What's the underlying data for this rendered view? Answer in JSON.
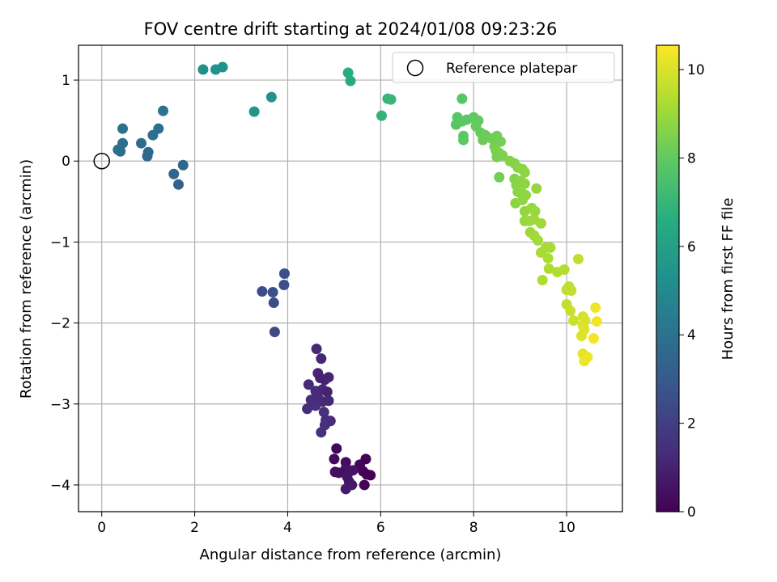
{
  "chart_data": {
    "type": "scatter",
    "title": "FOV centre drift starting at 2024/01/08 09:23:26",
    "xlabel": "Angular distance from reference (arcmin)",
    "ylabel": "Rotation from reference (arcmin)",
    "xlim": [
      -0.5,
      11.2
    ],
    "ylim": [
      -4.33,
      1.43
    ],
    "xticks": [
      0,
      2,
      4,
      6,
      8,
      10
    ],
    "yticks": [
      -4,
      -3,
      -2,
      -1,
      0,
      1
    ],
    "grid": true,
    "legend": {
      "position": "top-right",
      "entries": [
        "Reference platepar"
      ]
    },
    "reference_point": {
      "x": 0,
      "y": 0
    },
    "colorbar": {
      "label": "Hours from first FF file",
      "colormap": "viridis",
      "range": [
        0,
        10.55
      ],
      "ticks": [
        0,
        2,
        4,
        6,
        8,
        10
      ]
    },
    "points": [
      {
        "x": 5.05,
        "y": -3.55,
        "c": 0.2
      },
      {
        "x": 5.0,
        "y": -3.68,
        "c": 0.3
      },
      {
        "x": 5.25,
        "y": -3.72,
        "c": 0.35
      },
      {
        "x": 5.25,
        "y": -3.8,
        "c": 0.5
      },
      {
        "x": 5.1,
        "y": -3.85,
        "c": 0.45
      },
      {
        "x": 5.02,
        "y": -3.84,
        "c": 0.4
      },
      {
        "x": 5.28,
        "y": -3.9,
        "c": 0.6
      },
      {
        "x": 5.32,
        "y": -3.96,
        "c": 0.65
      },
      {
        "x": 5.38,
        "y": -4.0,
        "c": 0.7
      },
      {
        "x": 5.25,
        "y": -4.05,
        "c": 0.75
      },
      {
        "x": 5.55,
        "y": -3.75,
        "c": 0.2
      },
      {
        "x": 5.68,
        "y": -3.68,
        "c": 0.1
      },
      {
        "x": 5.62,
        "y": -3.83,
        "c": 0.15
      },
      {
        "x": 5.7,
        "y": -3.87,
        "c": 0.05
      },
      {
        "x": 5.78,
        "y": -3.88,
        "c": 0.0
      },
      {
        "x": 5.65,
        "y": -4.0,
        "c": 0.1
      },
      {
        "x": 5.4,
        "y": -3.82,
        "c": 0.55
      },
      {
        "x": 4.62,
        "y": -2.32,
        "c": 1.2
      },
      {
        "x": 4.72,
        "y": -2.44,
        "c": 1.15
      },
      {
        "x": 4.65,
        "y": -2.62,
        "c": 1.1
      },
      {
        "x": 4.7,
        "y": -2.68,
        "c": 1.05
      },
      {
        "x": 4.8,
        "y": -2.7,
        "c": 1.0
      },
      {
        "x": 4.88,
        "y": -2.67,
        "c": 1.1
      },
      {
        "x": 4.45,
        "y": -2.76,
        "c": 1.3
      },
      {
        "x": 4.6,
        "y": -2.84,
        "c": 1.25
      },
      {
        "x": 4.75,
        "y": -2.82,
        "c": 1.2
      },
      {
        "x": 4.85,
        "y": -2.85,
        "c": 1.0
      },
      {
        "x": 4.5,
        "y": -2.95,
        "c": 1.35
      },
      {
        "x": 4.65,
        "y": -2.92,
        "c": 1.3
      },
      {
        "x": 4.75,
        "y": -2.97,
        "c": 1.25
      },
      {
        "x": 4.88,
        "y": -2.96,
        "c": 1.2
      },
      {
        "x": 4.42,
        "y": -3.06,
        "c": 1.4
      },
      {
        "x": 4.6,
        "y": -3.02,
        "c": 1.45
      },
      {
        "x": 4.78,
        "y": -3.1,
        "c": 1.5
      },
      {
        "x": 4.82,
        "y": -3.2,
        "c": 1.4
      },
      {
        "x": 4.92,
        "y": -3.21,
        "c": 1.35
      },
      {
        "x": 4.8,
        "y": -3.26,
        "c": 1.45
      },
      {
        "x": 4.72,
        "y": -3.35,
        "c": 1.5
      },
      {
        "x": 3.45,
        "y": -1.61,
        "c": 2.5
      },
      {
        "x": 3.68,
        "y": -1.62,
        "c": 2.55
      },
      {
        "x": 3.7,
        "y": -1.75,
        "c": 2.45
      },
      {
        "x": 3.93,
        "y": -1.39,
        "c": 2.6
      },
      {
        "x": 3.92,
        "y": -1.53,
        "c": 2.5
      },
      {
        "x": 3.72,
        "y": -2.11,
        "c": 2.3
      },
      {
        "x": 0.35,
        "y": 0.14,
        "c": 3.8
      },
      {
        "x": 0.4,
        "y": 0.12,
        "c": 3.85
      },
      {
        "x": 0.45,
        "y": 0.22,
        "c": 3.9
      },
      {
        "x": 0.45,
        "y": 0.4,
        "c": 3.95
      },
      {
        "x": 0.85,
        "y": 0.22,
        "c": 3.7
      },
      {
        "x": 1.0,
        "y": 0.11,
        "c": 3.6
      },
      {
        "x": 0.98,
        "y": 0.06,
        "c": 3.65
      },
      {
        "x": 1.1,
        "y": 0.32,
        "c": 3.9
      },
      {
        "x": 1.22,
        "y": 0.4,
        "c": 3.9
      },
      {
        "x": 1.32,
        "y": 0.62,
        "c": 4.1
      },
      {
        "x": 1.55,
        "y": -0.16,
        "c": 3.4
      },
      {
        "x": 1.65,
        "y": -0.29,
        "c": 3.3
      },
      {
        "x": 1.75,
        "y": -0.05,
        "c": 3.5
      },
      {
        "x": 2.18,
        "y": 1.13,
        "c": 5.3
      },
      {
        "x": 2.45,
        "y": 1.13,
        "c": 5.35
      },
      {
        "x": 2.6,
        "y": 1.16,
        "c": 5.3
      },
      {
        "x": 3.28,
        "y": 0.61,
        "c": 5.5
      },
      {
        "x": 3.65,
        "y": 0.79,
        "c": 5.45
      },
      {
        "x": 5.3,
        "y": 1.09,
        "c": 6.5
      },
      {
        "x": 5.35,
        "y": 0.99,
        "c": 6.45
      },
      {
        "x": 6.02,
        "y": 0.56,
        "c": 6.9
      },
      {
        "x": 6.15,
        "y": 0.77,
        "c": 7.0
      },
      {
        "x": 6.22,
        "y": 0.76,
        "c": 7.05
      },
      {
        "x": 7.75,
        "y": 0.77,
        "c": 7.8
      },
      {
        "x": 7.65,
        "y": 0.54,
        "c": 7.8
      },
      {
        "x": 7.62,
        "y": 0.45,
        "c": 7.75
      },
      {
        "x": 7.75,
        "y": 0.49,
        "c": 7.85
      },
      {
        "x": 7.85,
        "y": 0.51,
        "c": 7.9
      },
      {
        "x": 8.0,
        "y": 0.54,
        "c": 7.95
      },
      {
        "x": 8.05,
        "y": 0.5,
        "c": 8.0
      },
      {
        "x": 8.1,
        "y": 0.5,
        "c": 8.0
      },
      {
        "x": 8.05,
        "y": 0.43,
        "c": 8.05
      },
      {
        "x": 7.78,
        "y": 0.31,
        "c": 7.9
      },
      {
        "x": 7.78,
        "y": 0.26,
        "c": 7.9
      },
      {
        "x": 8.15,
        "y": 0.35,
        "c": 8.1
      },
      {
        "x": 8.25,
        "y": 0.32,
        "c": 8.15
      },
      {
        "x": 8.2,
        "y": 0.26,
        "c": 8.2
      },
      {
        "x": 8.38,
        "y": 0.28,
        "c": 8.25
      },
      {
        "x": 8.5,
        "y": 0.31,
        "c": 8.3
      },
      {
        "x": 8.45,
        "y": 0.18,
        "c": 8.35
      },
      {
        "x": 8.58,
        "y": 0.24,
        "c": 8.3
      },
      {
        "x": 8.48,
        "y": 0.13,
        "c": 8.4
      },
      {
        "x": 8.55,
        "y": 0.1,
        "c": 8.45
      },
      {
        "x": 8.5,
        "y": 0.05,
        "c": 8.4
      },
      {
        "x": 8.62,
        "y": 0.07,
        "c": 8.5
      },
      {
        "x": 8.55,
        "y": -0.2,
        "c": 8.3
      },
      {
        "x": 8.78,
        "y": 0.0,
        "c": 8.55
      },
      {
        "x": 8.88,
        "y": -0.03,
        "c": 8.6
      },
      {
        "x": 8.95,
        "y": -0.08,
        "c": 8.65
      },
      {
        "x": 9.05,
        "y": -0.1,
        "c": 8.7
      },
      {
        "x": 9.1,
        "y": -0.14,
        "c": 8.75
      },
      {
        "x": 8.88,
        "y": -0.22,
        "c": 8.6
      },
      {
        "x": 8.92,
        "y": -0.3,
        "c": 8.65
      },
      {
        "x": 9.02,
        "y": -0.25,
        "c": 8.7
      },
      {
        "x": 9.1,
        "y": -0.28,
        "c": 8.75
      },
      {
        "x": 8.95,
        "y": -0.38,
        "c": 8.7
      },
      {
        "x": 9.05,
        "y": -0.4,
        "c": 8.75
      },
      {
        "x": 9.12,
        "y": -0.42,
        "c": 8.8
      },
      {
        "x": 9.35,
        "y": -0.34,
        "c": 8.9
      },
      {
        "x": 8.9,
        "y": -0.52,
        "c": 8.7
      },
      {
        "x": 9.05,
        "y": -0.48,
        "c": 8.8
      },
      {
        "x": 9.1,
        "y": -0.62,
        "c": 8.85
      },
      {
        "x": 9.25,
        "y": -0.58,
        "c": 8.9
      },
      {
        "x": 9.32,
        "y": -0.62,
        "c": 8.95
      },
      {
        "x": 9.1,
        "y": -0.74,
        "c": 8.9
      },
      {
        "x": 9.2,
        "y": -0.74,
        "c": 8.95
      },
      {
        "x": 9.3,
        "y": -0.72,
        "c": 9.0
      },
      {
        "x": 9.45,
        "y": -0.77,
        "c": 9.05
      },
      {
        "x": 9.22,
        "y": -0.88,
        "c": 9.0
      },
      {
        "x": 9.3,
        "y": -0.92,
        "c": 9.05
      },
      {
        "x": 9.38,
        "y": -0.98,
        "c": 9.1
      },
      {
        "x": 9.55,
        "y": -1.07,
        "c": 9.15
      },
      {
        "x": 9.65,
        "y": -1.07,
        "c": 9.2
      },
      {
        "x": 9.45,
        "y": -1.13,
        "c": 9.2
      },
      {
        "x": 9.6,
        "y": -1.2,
        "c": 9.25
      },
      {
        "x": 9.62,
        "y": -1.33,
        "c": 9.3
      },
      {
        "x": 9.8,
        "y": -1.37,
        "c": 9.35
      },
      {
        "x": 9.95,
        "y": -1.34,
        "c": 9.4
      },
      {
        "x": 9.48,
        "y": -1.47,
        "c": 9.3
      },
      {
        "x": 10.25,
        "y": -1.21,
        "c": 9.6
      },
      {
        "x": 10.0,
        "y": -1.59,
        "c": 9.5
      },
      {
        "x": 10.05,
        "y": -1.55,
        "c": 9.55
      },
      {
        "x": 10.1,
        "y": -1.6,
        "c": 9.6
      },
      {
        "x": 10.0,
        "y": -1.77,
        "c": 9.6
      },
      {
        "x": 10.08,
        "y": -1.85,
        "c": 9.7
      },
      {
        "x": 10.15,
        "y": -1.97,
        "c": 9.75
      },
      {
        "x": 10.35,
        "y": -1.92,
        "c": 9.9
      },
      {
        "x": 10.4,
        "y": -1.97,
        "c": 10.0
      },
      {
        "x": 10.35,
        "y": -2.03,
        "c": 10.0
      },
      {
        "x": 10.38,
        "y": -2.08,
        "c": 10.05
      },
      {
        "x": 10.32,
        "y": -2.16,
        "c": 10.05
      },
      {
        "x": 10.62,
        "y": -1.81,
        "c": 10.3
      },
      {
        "x": 10.65,
        "y": -1.98,
        "c": 10.35
      },
      {
        "x": 10.58,
        "y": -2.19,
        "c": 10.4
      },
      {
        "x": 10.35,
        "y": -2.38,
        "c": 10.2
      },
      {
        "x": 10.45,
        "y": -2.42,
        "c": 10.3
      },
      {
        "x": 10.38,
        "y": -2.47,
        "c": 10.3
      }
    ]
  }
}
